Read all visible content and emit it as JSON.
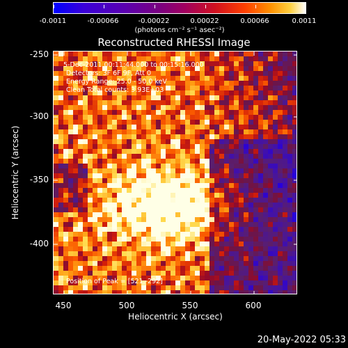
{
  "colorbar": {
    "tick_labels": [
      "-0.0011",
      "-0.00066",
      "-0.00022",
      "0.00022",
      "0.00066",
      "0.0011"
    ],
    "units": "(photons cm⁻² s⁻¹ asec⁻²)"
  },
  "plot": {
    "title": "Reconstructed RHESSI Image",
    "annotations": {
      "line1": "5-Dec-2011 00:11:44.000 to 00:15:16.000",
      "line2": "Detectors: 3F 6F 9F, Att 0",
      "line3": "Energy Range: 25.0 - 50.0 keV",
      "line4": "Clean     Total counts: 3.93E+03",
      "peak": "Position of Peak = [521,-292]"
    },
    "xlabel": "Heliocentric X (arcsec)",
    "ylabel": "Heliocentric Y (arcsec)",
    "xticks": [
      "450",
      "500",
      "550",
      "600"
    ],
    "yticks": [
      "-250",
      "-300",
      "-350",
      "-400"
    ],
    "xrange": [
      440,
      634
    ],
    "yrange": [
      -445,
      -250
    ]
  },
  "footer": {
    "timestamp": "20-May-2022 05:33"
  }
}
